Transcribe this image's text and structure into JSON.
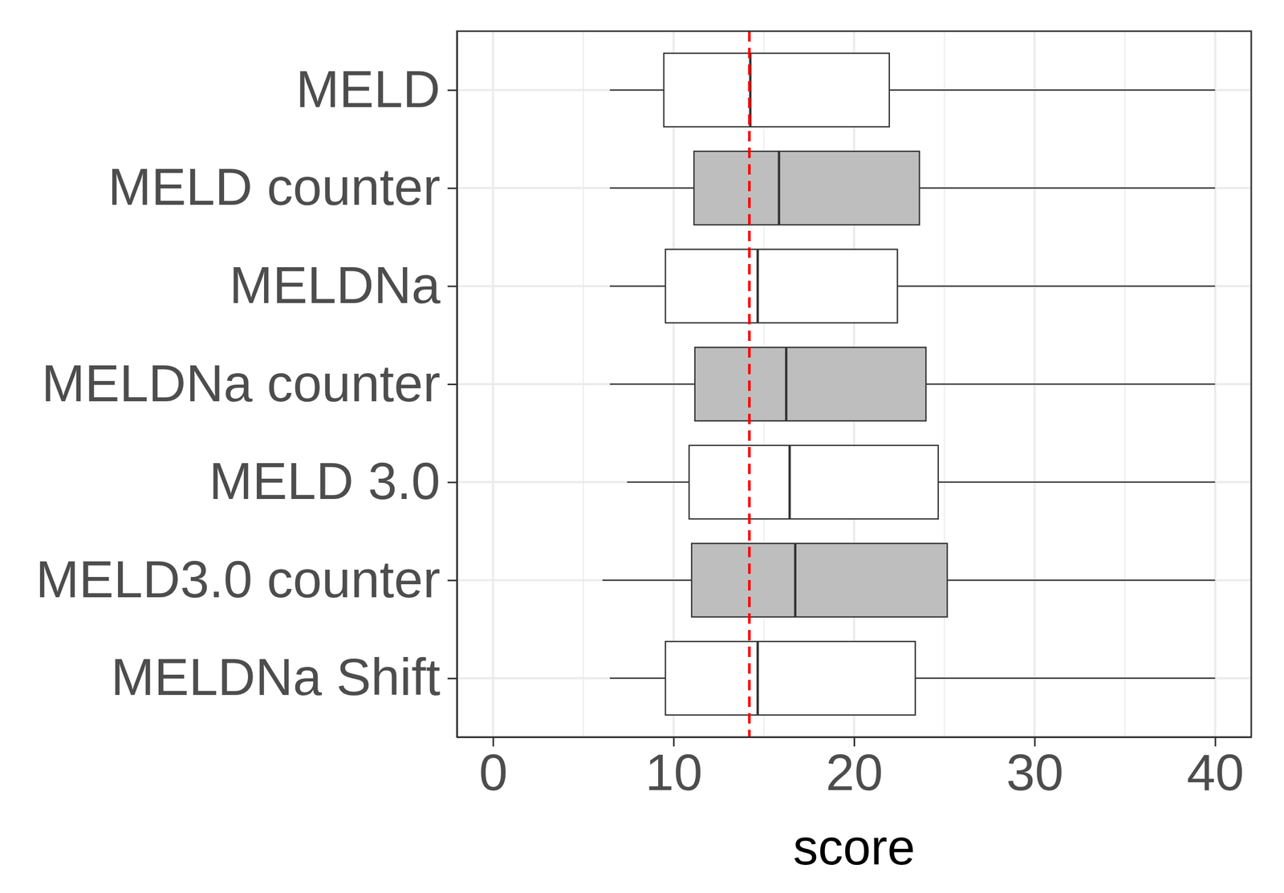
{
  "chart_data": {
    "type": "box",
    "orientation": "horizontal",
    "xlabel": "score",
    "categories": [
      "MELD",
      "MELD counter",
      "MELDNa",
      "MELDNa counter",
      "MELD 3.0",
      "MELD3.0 counter",
      "MELDNa Shift"
    ],
    "min": [
      6.47,
      6.47,
      6.47,
      6.47,
      7.42,
      6.06,
      6.47
    ],
    "q1": [
      9.46,
      11.13,
      9.55,
      11.18,
      10.86,
      11.0,
      9.55
    ],
    "median": [
      14.25,
      15.84,
      14.66,
      16.24,
      16.43,
      16.74,
      14.66
    ],
    "q3": [
      21.95,
      23.62,
      22.4,
      23.98,
      24.66,
      25.16,
      23.39
    ],
    "max": [
      40,
      40,
      40,
      40,
      40,
      40,
      40
    ],
    "colors": [
      "#ffffff",
      "#bebebe",
      "#ffffff",
      "#bebebe",
      "#ffffff",
      "#bebebe",
      "#ffffff"
    ],
    "xlim": [
      -2,
      42
    ],
    "xticks": [
      0,
      10,
      20,
      30,
      40
    ],
    "grid": true,
    "ref_line": {
      "value": 14.2,
      "color": "#ff0000",
      "line_style": "dashed"
    }
  }
}
